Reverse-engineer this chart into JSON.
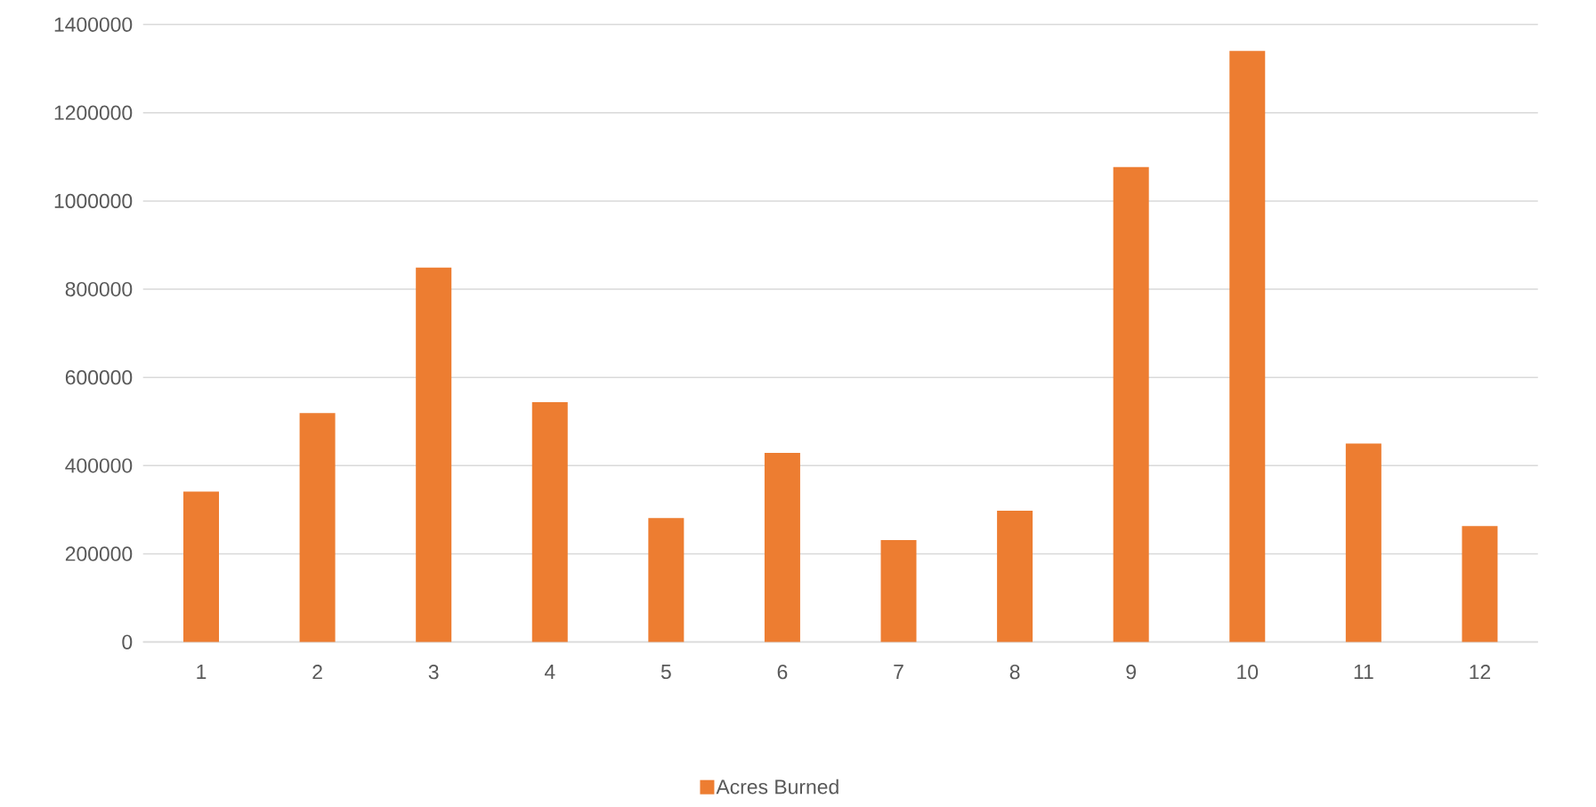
{
  "chart_data": {
    "type": "bar",
    "categories": [
      "1",
      "2",
      "3",
      "4",
      "5",
      "6",
      "7",
      "8",
      "9",
      "10",
      "11",
      "12"
    ],
    "series": [
      {
        "name": "Acres Burned",
        "color": "#ed7d31",
        "values": [
          341000,
          519000,
          849000,
          544000,
          281000,
          429000,
          231000,
          298000,
          1077000,
          1340000,
          450000,
          263000
        ]
      }
    ],
    "ylim": [
      0,
      1400000
    ],
    "yticks": [
      0,
      200000,
      400000,
      600000,
      800000,
      1000000,
      1200000,
      1400000
    ],
    "grid": "y",
    "legend": "bottom"
  }
}
